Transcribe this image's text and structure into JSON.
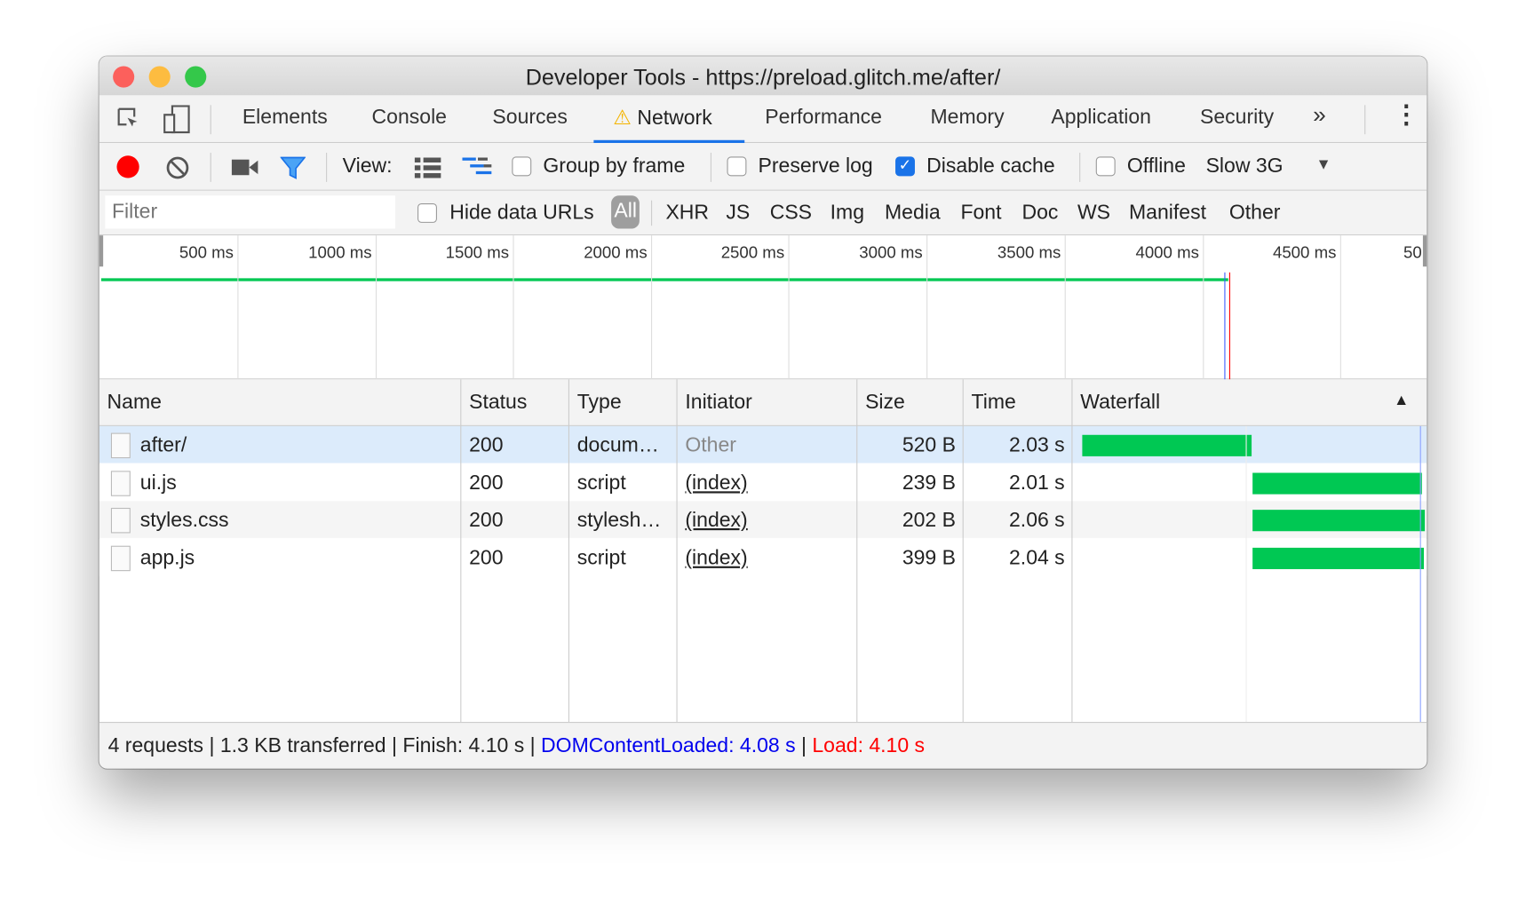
{
  "window": {
    "title": "Developer Tools - https://preload.glitch.me/after/"
  },
  "tabs": [
    {
      "label": "Elements"
    },
    {
      "label": "Console"
    },
    {
      "label": "Sources"
    },
    {
      "label": "Network",
      "active": true,
      "warning": true
    },
    {
      "label": "Performance"
    },
    {
      "label": "Memory"
    },
    {
      "label": "Application"
    },
    {
      "label": "Security"
    }
  ],
  "tabs_more": "»",
  "toolbar": {
    "view_label": "View:",
    "group_by_frame": "Group by frame",
    "group_by_frame_checked": false,
    "preserve_log": "Preserve log",
    "preserve_log_checked": false,
    "disable_cache": "Disable cache",
    "disable_cache_checked": true,
    "offline": "Offline",
    "offline_checked": false,
    "throttle": "Slow 3G",
    "record_color": "#f00"
  },
  "filter": {
    "placeholder": "Filter",
    "hide_data_urls": "Hide data URLs",
    "types": [
      "All",
      "XHR",
      "JS",
      "CSS",
      "Img",
      "Media",
      "Font",
      "Doc",
      "WS",
      "Manifest",
      "Other"
    ],
    "active_type": "All"
  },
  "overview": {
    "ticks": [
      "500 ms",
      "1000 ms",
      "1500 ms",
      "2000 ms",
      "2500 ms",
      "3000 ms",
      "3500 ms",
      "4000 ms",
      "4500 ms",
      "50"
    ],
    "dom_content_loaded_color": "#3b5bff",
    "load_color": "#f00"
  },
  "table": {
    "columns": [
      "Name",
      "Status",
      "Type",
      "Initiator",
      "Size",
      "Time",
      "Waterfall"
    ],
    "rows": [
      {
        "name": "after/",
        "status": "200",
        "type": "docum…",
        "initiator": "Other",
        "size": "520 B",
        "time": "2.03 s",
        "selected": true
      },
      {
        "name": "ui.js",
        "status": "200",
        "type": "script",
        "initiator": "(index)",
        "size": "239 B",
        "time": "2.01 s"
      },
      {
        "name": "styles.css",
        "status": "200",
        "type": "stylesh…",
        "initiator": "(index)",
        "size": "202 B",
        "time": "2.06 s"
      },
      {
        "name": "app.js",
        "status": "200",
        "type": "script",
        "initiator": "(index)",
        "size": "399 B",
        "time": "2.04 s"
      }
    ]
  },
  "status": {
    "requests": "4 requests",
    "transferred": "1.3 KB transferred",
    "finish": "Finish: 4.10 s",
    "dcl": "DOMContentLoaded: 4.08 s",
    "load": "Load: 4.10 s",
    "sep": "|"
  },
  "colors": {
    "accent": "#1a73e8",
    "bar": "#00c853",
    "dcl": "#0000ee",
    "load": "#f00"
  }
}
